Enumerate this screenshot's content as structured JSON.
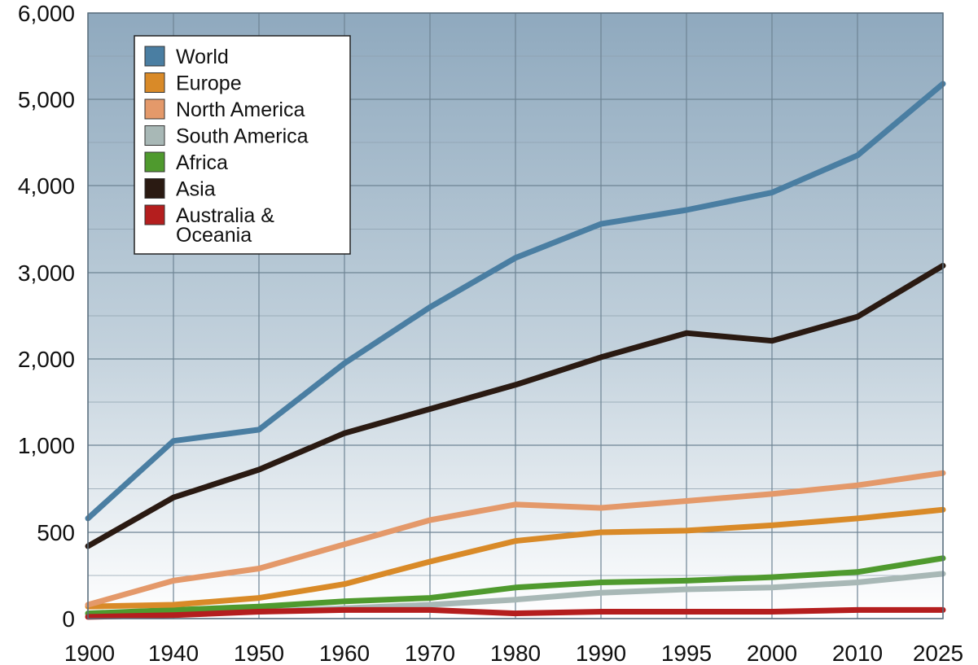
{
  "chart_data": {
    "type": "line",
    "title": "",
    "xlabel": "",
    "ylabel": "",
    "categories": [
      "1900",
      "1940",
      "1950",
      "1960",
      "1970",
      "1980",
      "1990",
      "1995",
      "2000",
      "2010",
      "2025"
    ],
    "ylim": [
      0,
      6000
    ],
    "y_ticks": [
      0,
      500,
      1000,
      2000,
      3000,
      4000,
      5000,
      6000
    ],
    "y_tick_labels": [
      "0",
      "500",
      "1,000",
      "2,000",
      "3,000",
      "4,000",
      "5,000",
      "6,000"
    ],
    "grid": true,
    "legend_position": "top-left",
    "series": [
      {
        "name": "World",
        "color": "#4a7ea2",
        "values": [
          580,
          1050,
          1180,
          1950,
          2600,
          3170,
          3560,
          3720,
          3920,
          4350,
          5180
        ]
      },
      {
        "name": "Europe",
        "color": "#d98a28",
        "values": [
          70,
          80,
          120,
          200,
          330,
          450,
          500,
          510,
          540,
          580,
          630
        ]
      },
      {
        "name": "North America",
        "color": "#e4996a",
        "values": [
          80,
          220,
          290,
          430,
          570,
          660,
          640,
          680,
          720,
          770,
          840
        ]
      },
      {
        "name": "South America",
        "color": "#a8b8b6",
        "values": [
          20,
          30,
          40,
          60,
          80,
          110,
          150,
          170,
          180,
          210,
          260
        ]
      },
      {
        "name": "Africa",
        "color": "#4f9a2e",
        "values": [
          30,
          50,
          70,
          100,
          120,
          180,
          210,
          220,
          240,
          270,
          350
        ]
      },
      {
        "name": "Asia",
        "color": "#2a1a12",
        "values": [
          420,
          700,
          860,
          1140,
          1420,
          1700,
          2020,
          2300,
          2210,
          2490,
          3080
        ]
      },
      {
        "name": "Australia & Oceania",
        "color": "#b41e1e",
        "values": [
          10,
          20,
          40,
          50,
          50,
          30,
          40,
          40,
          40,
          50,
          50
        ]
      }
    ],
    "legend_labels": [
      [
        "World"
      ],
      [
        "Europe"
      ],
      [
        "North America"
      ],
      [
        "South America"
      ],
      [
        "Africa"
      ],
      [
        "Asia"
      ],
      [
        "Australia &",
        "Oceania"
      ]
    ]
  }
}
